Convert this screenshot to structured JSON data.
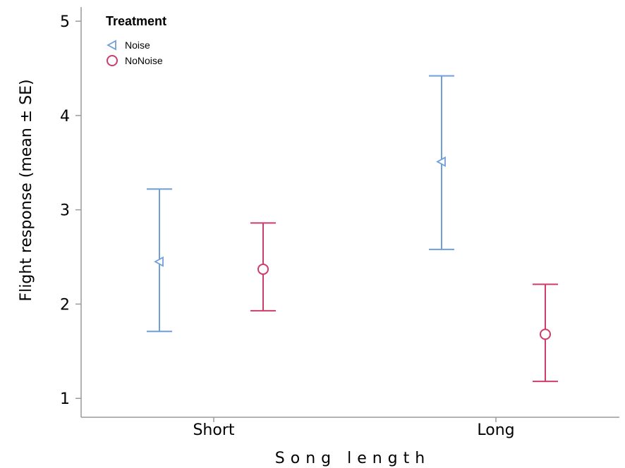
{
  "chart_data": {
    "type": "scatter",
    "xlabel": "Song length",
    "ylabel": "Flight response (mean ± SE)",
    "categories": [
      "Short",
      "Long"
    ],
    "ylim": [
      0.8,
      5.15
    ],
    "yticks": [
      1,
      2,
      3,
      4,
      5
    ],
    "grid": false,
    "legend": {
      "title": "Treatment",
      "placement": "top-left"
    },
    "series": [
      {
        "name": "Noise",
        "marker": "triangle-left",
        "color": "#6f9edc",
        "mean": [
          2.45,
          3.51
        ],
        "lower": [
          1.71,
          2.58
        ],
        "upper": [
          3.22,
          4.42
        ]
      },
      {
        "name": "NoNoise",
        "marker": "circle",
        "color": "#cc3d6a",
        "mean": [
          2.37,
          1.68
        ],
        "lower": [
          1.93,
          1.18
        ],
        "upper": [
          2.86,
          2.21
        ]
      }
    ]
  }
}
